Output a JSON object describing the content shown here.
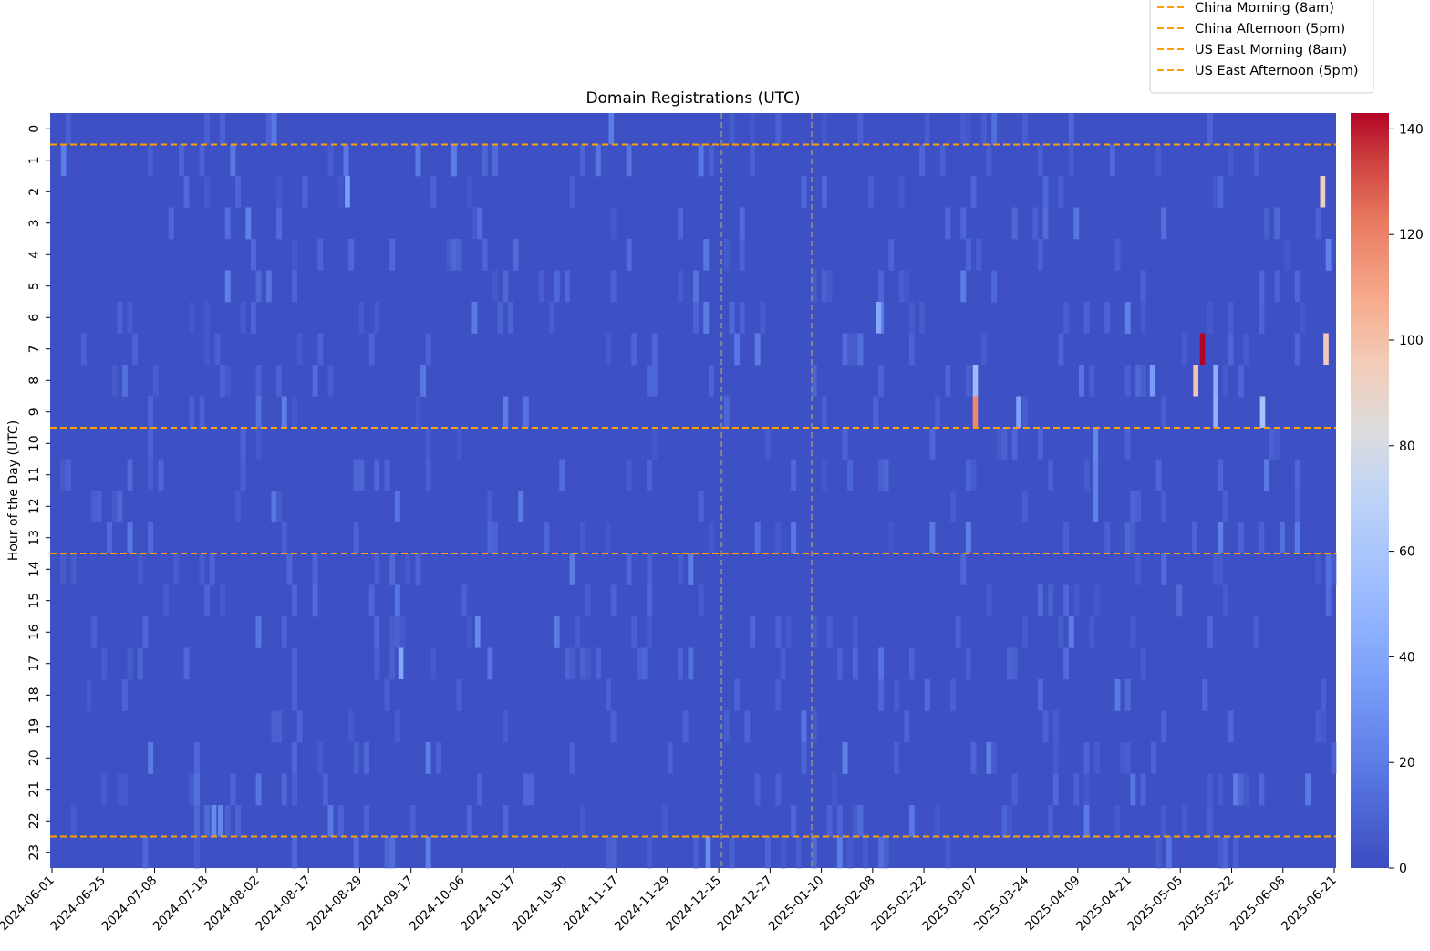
{
  "chart_data": {
    "type": "heatmap",
    "title": "Domain Registrations (UTC)",
    "xlabel": "",
    "ylabel": "Hour of the Day (UTC)",
    "x_tick_labels": [
      "2024-06-01",
      "2024-06-25",
      "2024-07-08",
      "2024-07-18",
      "2024-08-02",
      "2024-08-17",
      "2024-08-29",
      "2024-09-17",
      "2024-10-06",
      "2024-10-17",
      "2024-10-30",
      "2024-11-17",
      "2024-11-29",
      "2024-12-15",
      "2024-12-27",
      "2025-01-10",
      "2025-02-08",
      "2025-02-22",
      "2025-03-07",
      "2025-03-24",
      "2025-04-09",
      "2025-04-21",
      "2025-05-05",
      "2025-05-22",
      "2025-06-08",
      "2025-06-21"
    ],
    "y_tick_labels": [
      "0",
      "1",
      "2",
      "3",
      "4",
      "5",
      "6",
      "7",
      "8",
      "9",
      "10",
      "11",
      "12",
      "13",
      "14",
      "15",
      "16",
      "17",
      "18",
      "19",
      "20",
      "21",
      "22",
      "23"
    ],
    "n_columns": 250,
    "colorscale": "coolwarm",
    "colorbar": {
      "min": 0,
      "max": 143,
      "ticks": [
        0,
        20,
        40,
        60,
        80,
        100,
        120,
        140
      ]
    },
    "baseline_value": 2,
    "highlight_cells": [
      {
        "date": "2025-05-12",
        "hour": 7,
        "value": 143
      },
      {
        "date": "2025-06-18",
        "hour": 7,
        "value": 96
      },
      {
        "date": "2025-06-17",
        "hour": 2,
        "value": 93
      },
      {
        "date": "2025-05-10",
        "hour": 8,
        "value": 98
      },
      {
        "date": "2025-03-05",
        "hour": 9,
        "value": 118
      },
      {
        "date": "2025-03-05",
        "hour": 8,
        "value": 52
      },
      {
        "date": "2025-05-16",
        "hour": 8,
        "value": 45
      },
      {
        "date": "2025-05-16",
        "hour": 9,
        "value": 48
      },
      {
        "date": "2025-05-30",
        "hour": 9,
        "value": 58
      },
      {
        "date": "2025-03-18",
        "hour": 9,
        "value": 38
      },
      {
        "date": "2025-04-27",
        "hour": 8,
        "value": 34
      },
      {
        "date": "2025-02-04",
        "hour": 6,
        "value": 42
      },
      {
        "date": "2024-09-14",
        "hour": 17,
        "value": 40
      },
      {
        "date": "2024-08-29",
        "hour": 2,
        "value": 36
      },
      {
        "date": "2024-12-15",
        "hour": 23,
        "value": 28
      },
      {
        "date": "2024-07-20",
        "hour": 22,
        "value": 26
      },
      {
        "date": "2024-07-22",
        "hour": 22,
        "value": 24
      },
      {
        "date": "2025-04-10",
        "hour": 10,
        "value": 24
      },
      {
        "date": "2025-04-10",
        "hour": 11,
        "value": 22
      },
      {
        "date": "2025-04-10",
        "hour": 12,
        "value": 22
      },
      {
        "date": "2024-10-07",
        "hour": 16,
        "value": 26
      },
      {
        "date": "2024-06-05",
        "hour": 1,
        "value": 20
      },
      {
        "date": "2024-11-16",
        "hour": 0,
        "value": 20
      }
    ],
    "vlines": [
      {
        "date": "2024-12-19",
        "color": "#888888"
      },
      {
        "date": "2025-01-15",
        "color": "#888888"
      }
    ],
    "hlines": [
      {
        "name": "China Morning (8am)",
        "hour": 0,
        "color": "#ff9e00"
      },
      {
        "name": "China Afternoon (5pm)",
        "hour": 9,
        "color": "#ff9e00"
      },
      {
        "name": "US East Morning (8am)",
        "hour": 13,
        "color": "#ff9e00"
      },
      {
        "name": "US East Afternoon (5pm)",
        "hour": 22,
        "color": "#ff9e00"
      }
    ],
    "legend_placement": "top-right"
  }
}
